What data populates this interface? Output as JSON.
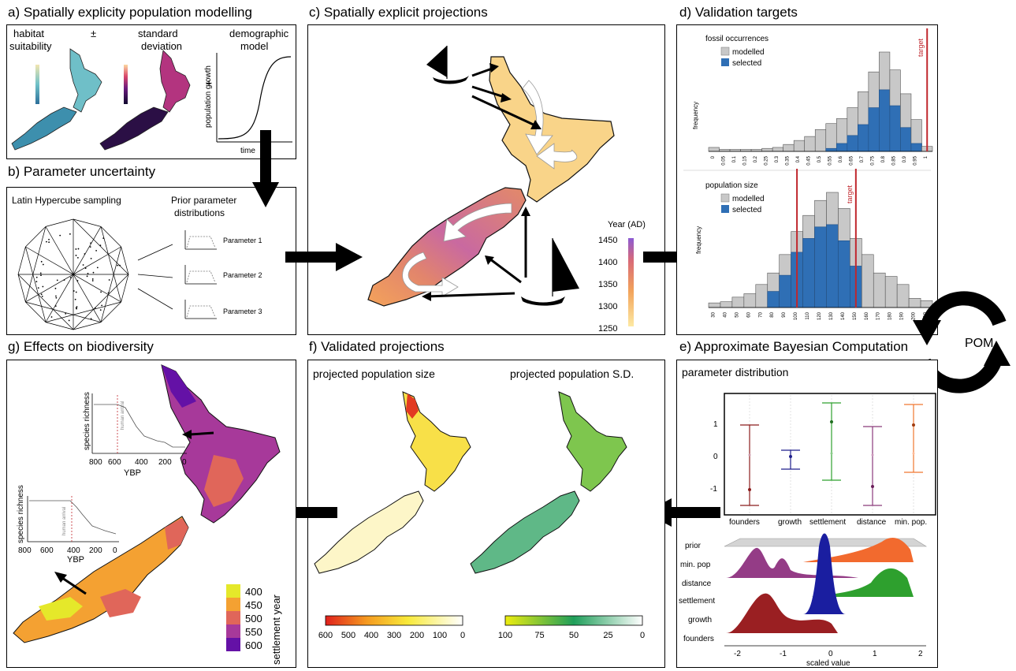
{
  "panels": {
    "a": {
      "title": "a) Spatially explicity population modelling",
      "habitat_label_1": "habitat",
      "habitat_label_2": "suitability",
      "plus_minus": "±",
      "sd_label_1": "standard",
      "sd_label_2": "deviation",
      "plus": "+",
      "demo_label_1": "demographic",
      "demo_label_2": "model",
      "y_axis": "population growth",
      "x_axis": "time"
    },
    "b": {
      "title": "b) Parameter uncertainty",
      "lhs_label": "Latin Hypercube sampling",
      "prior_label_1": "Prior parameter",
      "prior_label_2": "distributions",
      "params": [
        "Parameter 1",
        "Parameter 2",
        "Parameter 3"
      ]
    },
    "c": {
      "title": "c) Spatially explicit projections",
      "legend_title": "Year (AD)",
      "legend_ticks": [
        "1450",
        "1400",
        "1350",
        "1300",
        "1250"
      ]
    },
    "d": {
      "title": "d) Validation targets",
      "top": {
        "legend_title": "fossil occurrences",
        "legend_items": [
          "modelled",
          "selected"
        ],
        "ylabel": "frequency",
        "target": "target",
        "ticks": [
          "0",
          "0.05",
          "0.1",
          "0.15",
          "0.2",
          "0.25",
          "0.3",
          "0.35",
          "0.4",
          "0.45",
          "0.5",
          "0.55",
          "0.6",
          "0.65",
          "0.7",
          "0.75",
          "0.8",
          "0.85",
          "0.9",
          "0.95",
          "1"
        ]
      },
      "bottom": {
        "legend_title": "population size",
        "legend_items": [
          "modelled",
          "selected"
        ],
        "ylabel": "frequency",
        "target": "target",
        "ticks": [
          "30",
          "40",
          "50",
          "60",
          "70",
          "80",
          "90",
          "100",
          "110",
          "120",
          "130",
          "140",
          "150",
          "160",
          "170",
          "180",
          "190",
          "200",
          "210"
        ]
      }
    },
    "e": {
      "title": "e) Approximate Bayesian Computation",
      "subtitle": "parameter distribution",
      "pom": "POM",
      "y_ticks": [
        "1",
        "0",
        "-1"
      ],
      "x_labels": [
        "founders",
        "growth",
        "settlement",
        "distance",
        "min. pop."
      ],
      "ridge_labels": [
        "prior",
        "min. pop",
        "distance",
        "settlement",
        "growth",
        "founders"
      ],
      "ridge_x_ticks": [
        "-2",
        "-1",
        "0",
        "1",
        "2"
      ],
      "ridge_xlabel": "scaled value"
    },
    "f": {
      "title": "f) Validated projections",
      "left_label": "projected population size",
      "right_label": "projected population S.D.",
      "left_ticks": [
        "600",
        "500",
        "400",
        "300",
        "200",
        "100",
        "0"
      ],
      "right_ticks": [
        "100",
        "75",
        "50",
        "25",
        "0"
      ]
    },
    "g": {
      "title": "g) Effects on biodiversity",
      "inset_ylabel": "species richness",
      "inset_annot": "human arrival",
      "inset_xlabel": "YBP",
      "inset1_ticks": [
        "800",
        "600",
        "400",
        "200",
        "0"
      ],
      "inset2_ticks": [
        "800",
        "600",
        "400",
        "200",
        "0"
      ],
      "legend_title": "settlement year",
      "legend_items": [
        "400",
        "450",
        "500",
        "550",
        "600"
      ]
    }
  },
  "colors": {
    "modelled": "#c8c8c8",
    "selected": "#2f6fb5",
    "target": "#c0272d",
    "s400": "#e5e82a",
    "s450": "#f4a132",
    "s500": "#e0665a",
    "s550": "#a7399a",
    "s600": "#6411a6"
  },
  "chart_data": [
    {
      "type": "bar",
      "panel": "d-top",
      "legend_title": "fossil occurrences",
      "categories": [
        "0",
        "0.05",
        "0.1",
        "0.15",
        "0.2",
        "0.25",
        "0.3",
        "0.35",
        "0.4",
        "0.45",
        "0.5",
        "0.55",
        "0.6",
        "0.65",
        "0.7",
        "0.75",
        "0.8",
        "0.85",
        "0.9",
        "0.95",
        "1"
      ],
      "series": [
        {
          "name": "modelled",
          "values": [
            4,
            2,
            2,
            2,
            2,
            3,
            4,
            7,
            11,
            15,
            22,
            28,
            33,
            44,
            60,
            80,
            100,
            82,
            58,
            32,
            5
          ]
        },
        {
          "name": "selected",
          "values": [
            0,
            0,
            0,
            0,
            0,
            0,
            0,
            0,
            0,
            0,
            0,
            3,
            8,
            16,
            27,
            44,
            62,
            46,
            24,
            8,
            0
          ]
        }
      ],
      "ylabel": "frequency",
      "target": 0.98
    },
    {
      "type": "bar",
      "panel": "d-bottom",
      "legend_title": "population size",
      "categories": [
        "30",
        "40",
        "50",
        "60",
        "70",
        "80",
        "90",
        "100",
        "110",
        "120",
        "130",
        "140",
        "150",
        "160",
        "170",
        "180",
        "190",
        "200",
        "210"
      ],
      "series": [
        {
          "name": "modelled",
          "values": [
            4,
            5,
            9,
            12,
            20,
            30,
            46,
            66,
            80,
            93,
            100,
            86,
            60,
            46,
            30,
            27,
            20,
            8,
            6
          ]
        },
        {
          "name": "selected",
          "values": [
            0,
            0,
            0,
            0,
            0,
            14,
            28,
            48,
            60,
            70,
            72,
            58,
            36,
            0,
            0,
            0,
            0,
            0,
            0
          ]
        }
      ],
      "ylabel": "frequency",
      "targets": [
        100,
        150
      ]
    },
    {
      "type": "scatter",
      "panel": "e-top",
      "categories": [
        "founders",
        "growth",
        "settlement",
        "distance",
        "min. pop."
      ],
      "ylim": [
        -1.5,
        1.5
      ],
      "y_ticks": [
        1,
        0,
        -1
      ]
    }
  ]
}
